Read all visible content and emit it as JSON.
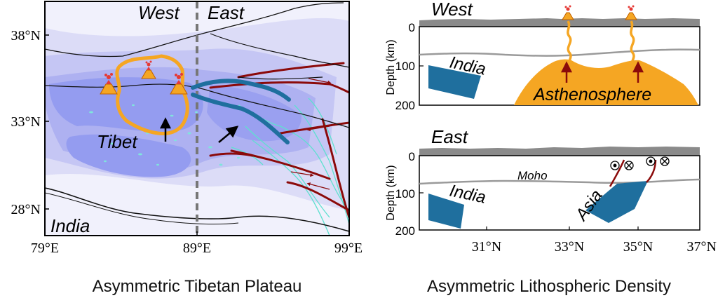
{
  "map": {
    "label_west": "West",
    "label_east": "East",
    "label_tibet": "Tibet",
    "label_india": "India",
    "lat_ticks": [
      "38°N",
      "33°N",
      "28°N"
    ],
    "lon_ticks": [
      "79°E",
      "89°E",
      "99°E"
    ],
    "caption": "Asymmetric Tibetan Plateau"
  },
  "sections": {
    "west": {
      "title": "West",
      "ylabel": "Depth (km)",
      "depth_ticks": [
        "0",
        "100",
        "200"
      ],
      "label_india": "India",
      "label_asthenosphere": "Asthenosphere"
    },
    "east": {
      "title": "East",
      "ylabel": "Depth (km)",
      "depth_ticks": [
        "0",
        "100",
        "200"
      ],
      "label_moho": "Moho",
      "label_india": "India",
      "label_asia": "Asia",
      "lat_ticks": [
        "31°N",
        "33°N",
        "35°N",
        "37°N"
      ]
    },
    "caption": "Asymmetric Lithospheric Density"
  },
  "colors": {
    "plateau_blue": "#8f97ef",
    "slab_blue": "#1f6f9e",
    "asthenosphere_orange": "#f5a623",
    "fault_red": "#8b0a0a",
    "river_cyan": "#5fe0d0",
    "topography_gray": "#8a8a8a"
  }
}
